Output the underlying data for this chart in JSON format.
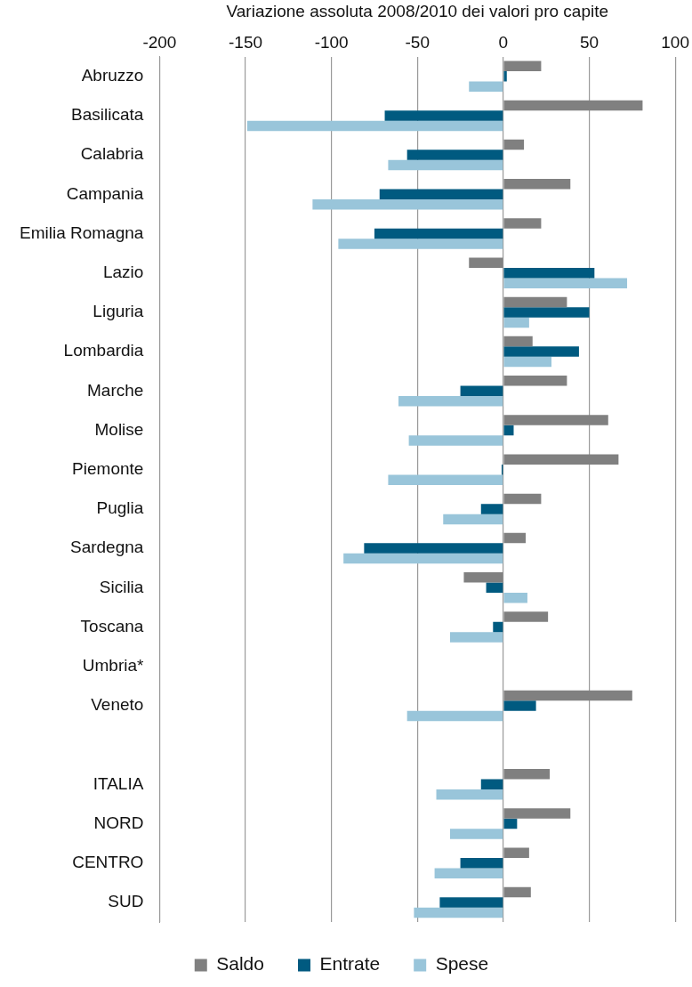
{
  "chart_data": {
    "type": "bar",
    "orientation": "horizontal",
    "xlabel": "Variazione assoluta 2008/2010 dei valori pro capite",
    "categories": [
      "Abruzzo",
      "Basilicata",
      "Calabria",
      "Campania",
      "Emilia Romagna",
      "Lazio",
      "Liguria",
      "Lombardia",
      "Marche",
      "Molise",
      "Piemonte",
      "Puglia",
      "Sardegna",
      "Sicilia",
      "Toscana",
      "Umbria*",
      "Veneto",
      null,
      "ITALIA",
      "NORD",
      "CENTRO",
      "SUD"
    ],
    "series": [
      {
        "name": "Saldo",
        "color": "#808080",
        "values": [
          22,
          81,
          12,
          39,
          22,
          -20,
          37,
          17,
          37,
          61,
          67,
          22,
          13,
          -23,
          26,
          null,
          75,
          null,
          27,
          39,
          15,
          16
        ]
      },
      {
        "name": "Entrate",
        "color": "#005a80",
        "values": [
          2,
          -69,
          -56,
          -72,
          -75,
          53,
          50,
          44,
          -25,
          6,
          -1,
          -13,
          -81,
          -10,
          -6,
          null,
          19,
          null,
          -13,
          8,
          -25,
          -37
        ]
      },
      {
        "name": "Spese",
        "color": "#99c5da",
        "values": [
          -20,
          -149,
          -67,
          -111,
          -96,
          72,
          15,
          28,
          -61,
          -55,
          -67,
          -35,
          -93,
          14,
          -31,
          null,
          -56,
          null,
          -39,
          -31,
          -40,
          -52
        ]
      }
    ],
    "xlim": [
      -200,
      100
    ],
    "xticks": [
      -200,
      -150,
      -100,
      -50,
      0,
      50,
      100
    ],
    "grid": "x",
    "legend": "bottom"
  }
}
